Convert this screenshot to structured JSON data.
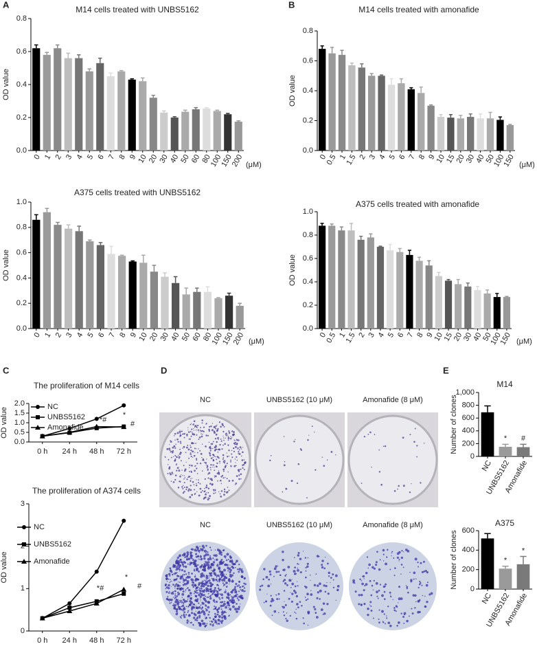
{
  "panel_labels": [
    "A",
    "B",
    "C",
    "D",
    "E"
  ],
  "chart_data": [
    {
      "type": "bar",
      "title": "M14 cells treated with UNBS5162",
      "y_label": "OD value",
      "x_unit": "(μM)",
      "categories": [
        "0",
        "1",
        "2",
        "3",
        "4",
        "5",
        "6",
        "7",
        "8",
        "9",
        "10",
        "20",
        "30",
        "40",
        "50",
        "60",
        "80",
        "100",
        "150",
        "200"
      ],
      "values": [
        0.62,
        0.58,
        0.62,
        0.56,
        0.56,
        0.48,
        0.53,
        0.45,
        0.48,
        0.43,
        0.42,
        0.32,
        0.23,
        0.2,
        0.235,
        0.25,
        0.255,
        0.24,
        0.22,
        0.175
      ],
      "errors": [
        0.02,
        0.015,
        0.02,
        0.03,
        0.02,
        0.015,
        0.03,
        0.02,
        0.005,
        0.005,
        0.02,
        0.015,
        0.01,
        0.005,
        0.01,
        0.01,
        0.005,
        0.005,
        0.005,
        0.005
      ],
      "colors": [
        "#000000",
        "#9a9a9a",
        "#8a8a8a",
        "#bdbdbd",
        "#777777",
        "#9a9a9a",
        "#666666",
        "#dddddd",
        "#aaaaaa",
        "#000000",
        "#aaaaaa",
        "#888888",
        "#cccccc",
        "#555555",
        "#aaaaaa",
        "#777777",
        "#dddddd",
        "#aaaaaa",
        "#333333",
        "#999999"
      ],
      "ylim": [
        0,
        0.8
      ],
      "yticks": [
        {
          "value": 0,
          "label": "0.0"
        },
        0.2,
        0.4,
        0.6,
        0.8
      ]
    },
    {
      "type": "bar",
      "title": "M14 cells treated with amonafide",
      "y_label": "OD value",
      "x_unit": "(μM)",
      "categories": [
        "0",
        "0.5",
        "1",
        "1.5",
        "2",
        "3",
        "4",
        "5",
        "6",
        "7",
        "8",
        "9",
        "10",
        "15",
        "20",
        "30",
        "40",
        "50",
        "100",
        "150"
      ],
      "values": [
        0.68,
        0.65,
        0.64,
        0.57,
        0.555,
        0.5,
        0.5,
        0.44,
        0.45,
        0.41,
        0.385,
        0.3,
        0.225,
        0.22,
        0.215,
        0.225,
        0.215,
        0.215,
        0.205,
        0.17
      ],
      "errors": [
        0.02,
        0.04,
        0.03,
        0.015,
        0.025,
        0.015,
        0.005,
        0.04,
        0.03,
        0.01,
        0.04,
        0.005,
        0.015,
        0.02,
        0.02,
        0.02,
        0.03,
        0.04,
        0.02,
        0.005
      ],
      "colors": [
        "#000000",
        "#9a9a9a",
        "#8a8a8a",
        "#bdbdbd",
        "#777777",
        "#9a9a9a",
        "#666666",
        "#dddddd",
        "#aaaaaa",
        "#000000",
        "#aaaaaa",
        "#888888",
        "#cccccc",
        "#555555",
        "#aaaaaa",
        "#777777",
        "#dddddd",
        "#aaaaaa",
        "#000000",
        "#999999"
      ],
      "ylim": [
        0,
        0.8
      ],
      "yticks": [
        {
          "value": 0,
          "label": "0.0"
        },
        0.2,
        0.4,
        0.6,
        0.8
      ]
    },
    {
      "type": "bar",
      "title": "A375 cells treated with UNBS5162",
      "y_label": "OD value",
      "x_unit": "(μM)",
      "categories": [
        "0",
        "1",
        "2",
        "3",
        "4",
        "5",
        "6",
        "7",
        "8",
        "9",
        "10",
        "20",
        "30",
        "40",
        "50",
        "60",
        "80",
        "100",
        "150",
        "200"
      ],
      "values": [
        0.86,
        0.92,
        0.82,
        0.79,
        0.77,
        0.69,
        0.66,
        0.59,
        0.575,
        0.53,
        0.52,
        0.45,
        0.41,
        0.36,
        0.27,
        0.29,
        0.29,
        0.24,
        0.26,
        0.18
      ],
      "errors": [
        0.04,
        0.03,
        0.02,
        0.03,
        0.04,
        0.01,
        0.02,
        0.06,
        0.005,
        0.005,
        0.06,
        0.05,
        0.03,
        0.05,
        0.05,
        0.03,
        0.04,
        0.005,
        0.02,
        0.02
      ],
      "colors": [
        "#000000",
        "#9a9a9a",
        "#8a8a8a",
        "#bdbdbd",
        "#777777",
        "#9a9a9a",
        "#666666",
        "#dddddd",
        "#aaaaaa",
        "#000000",
        "#aaaaaa",
        "#888888",
        "#cccccc",
        "#555555",
        "#aaaaaa",
        "#777777",
        "#dddddd",
        "#aaaaaa",
        "#333333",
        "#999999"
      ],
      "ylim": [
        0,
        1
      ],
      "yticks": [
        {
          "value": 0,
          "label": "0.0"
        },
        0.2,
        0.4,
        0.6,
        0.8,
        {
          "value": 1,
          "label": "1.0"
        }
      ]
    },
    {
      "type": "bar",
      "title": "A375 cells treated with amonafide",
      "y_label": "OD value",
      "x_unit": "(μM)",
      "categories": [
        "0",
        "0.5",
        "1",
        "1.5",
        "2",
        "3",
        "4",
        "5",
        "6",
        "7",
        "8",
        "9",
        "10",
        "15",
        "20",
        "30",
        "40",
        "50",
        "100",
        "150"
      ],
      "values": [
        0.88,
        0.88,
        0.84,
        0.84,
        0.76,
        0.78,
        0.7,
        0.67,
        0.655,
        0.63,
        0.58,
        0.54,
        0.45,
        0.41,
        0.38,
        0.36,
        0.33,
        0.3,
        0.27,
        0.27
      ],
      "errors": [
        0.02,
        0.015,
        0.03,
        0.06,
        0.03,
        0.03,
        0.005,
        0.05,
        0.03,
        0.04,
        0.03,
        0.04,
        0.03,
        0.01,
        0.04,
        0.03,
        0.03,
        0.03,
        0.03,
        0.005
      ],
      "colors": [
        "#000000",
        "#9a9a9a",
        "#8a8a8a",
        "#bdbdbd",
        "#777777",
        "#9a9a9a",
        "#666666",
        "#dddddd",
        "#aaaaaa",
        "#000000",
        "#aaaaaa",
        "#888888",
        "#cccccc",
        "#555555",
        "#aaaaaa",
        "#777777",
        "#dddddd",
        "#aaaaaa",
        "#000000",
        "#999999"
      ],
      "ylim": [
        0,
        1
      ],
      "yticks": [
        {
          "value": 0,
          "label": "0.0"
        },
        0.2,
        0.4,
        0.6,
        0.8,
        {
          "value": 1,
          "label": "1.0"
        }
      ]
    },
    {
      "type": "line",
      "title": "The proliferation of M14 cells",
      "y_label": "OD value",
      "categories": [
        "0 h",
        "24 h",
        "48 h",
        "72 h"
      ],
      "series": [
        {
          "name": "NC",
          "color": "#000000",
          "marker": "circle",
          "values": [
            0.3,
            0.7,
            1.2,
            1.9
          ]
        },
        {
          "name": "UNBS5162",
          "color": "#000000",
          "marker": "square",
          "values": [
            0.3,
            0.48,
            0.72,
            0.8
          ]
        },
        {
          "name": "Amonafide",
          "color": "#000000",
          "marker": "triangle",
          "values": [
            0.3,
            0.5,
            0.8,
            0.78
          ]
        }
      ],
      "annotations": [
        {
          "text": "*#",
          "category": "48 h"
        },
        {
          "text": "*",
          "category": "72 h"
        },
        {
          "text": "#",
          "category": "72 h"
        }
      ],
      "ylim": [
        0,
        2
      ],
      "yticks": [
        {
          "value": 0,
          "label": "0.0"
        },
        0.5,
        {
          "value": 1,
          "label": "1.0"
        },
        1.5,
        {
          "value": 2,
          "label": "2.0"
        }
      ]
    },
    {
      "type": "line",
      "title": "The proliferation of A374 cells",
      "y_label": "OD value",
      "categories": [
        "0 h",
        "24 h",
        "48 h",
        "72 h"
      ],
      "series": [
        {
          "name": "NC",
          "color": "#000000",
          "marker": "circle",
          "values": [
            0.3,
            0.65,
            1.4,
            2.6
          ]
        },
        {
          "name": "UNBS5162",
          "color": "#000000",
          "marker": "square",
          "values": [
            0.3,
            0.55,
            0.7,
            0.88
          ]
        },
        {
          "name": "Amonafide",
          "color": "#000000",
          "marker": "triangle",
          "values": [
            0.3,
            0.47,
            0.65,
            0.98
          ]
        }
      ],
      "annotations": [
        {
          "text": "*#",
          "category": "48 h"
        },
        {
          "text": "*",
          "category": "72 h"
        },
        {
          "text": "#",
          "category": "72 h"
        }
      ],
      "ylim": [
        0,
        3
      ],
      "yticks": [
        0,
        1,
        2,
        3
      ]
    },
    {
      "type": "bar",
      "title": "M14",
      "y_label": "Number of clones",
      "categories": [
        "NC",
        "UNBS5162",
        "Amonafide"
      ],
      "values": [
        690,
        150,
        145
      ],
      "errors": [
        100,
        40,
        45
      ],
      "colors": [
        "#000000",
        "#9a9a9a",
        "#7a7a7a"
      ],
      "annotations": [
        {
          "text": "*",
          "category": "UNBS5162"
        },
        {
          "text": "#",
          "category": "Amonafide"
        }
      ],
      "ylim": [
        0,
        1000
      ],
      "yticks": [
        0,
        200,
        400,
        600,
        800,
        {
          "value": 1000,
          "label": "1,000"
        }
      ]
    },
    {
      "type": "bar",
      "title": "A375",
      "y_label": "Number of clones",
      "categories": [
        "NC",
        "UNBS5162",
        "Amonafide"
      ],
      "values": [
        520,
        210,
        255
      ],
      "errors": [
        50,
        25,
        80
      ],
      "colors": [
        "#000000",
        "#9a9a9a",
        "#7a7a7a"
      ],
      "annotations": [
        {
          "text": "*",
          "category": "UNBS5162"
        },
        {
          "text": "*",
          "category": "Amonafide"
        }
      ],
      "ylim": [
        0,
        600
      ],
      "yticks": [
        0,
        200,
        400,
        600
      ]
    }
  ],
  "clone_assay": {
    "rows": [
      {
        "labels": [
          "NC",
          "UNBS5162 (10 μM)",
          "Amonafide (8 μM)"
        ]
      },
      {
        "labels": [
          "NC",
          "UNBS5162 (10 μM)",
          "Amonafide (8 μM)"
        ]
      }
    ]
  }
}
